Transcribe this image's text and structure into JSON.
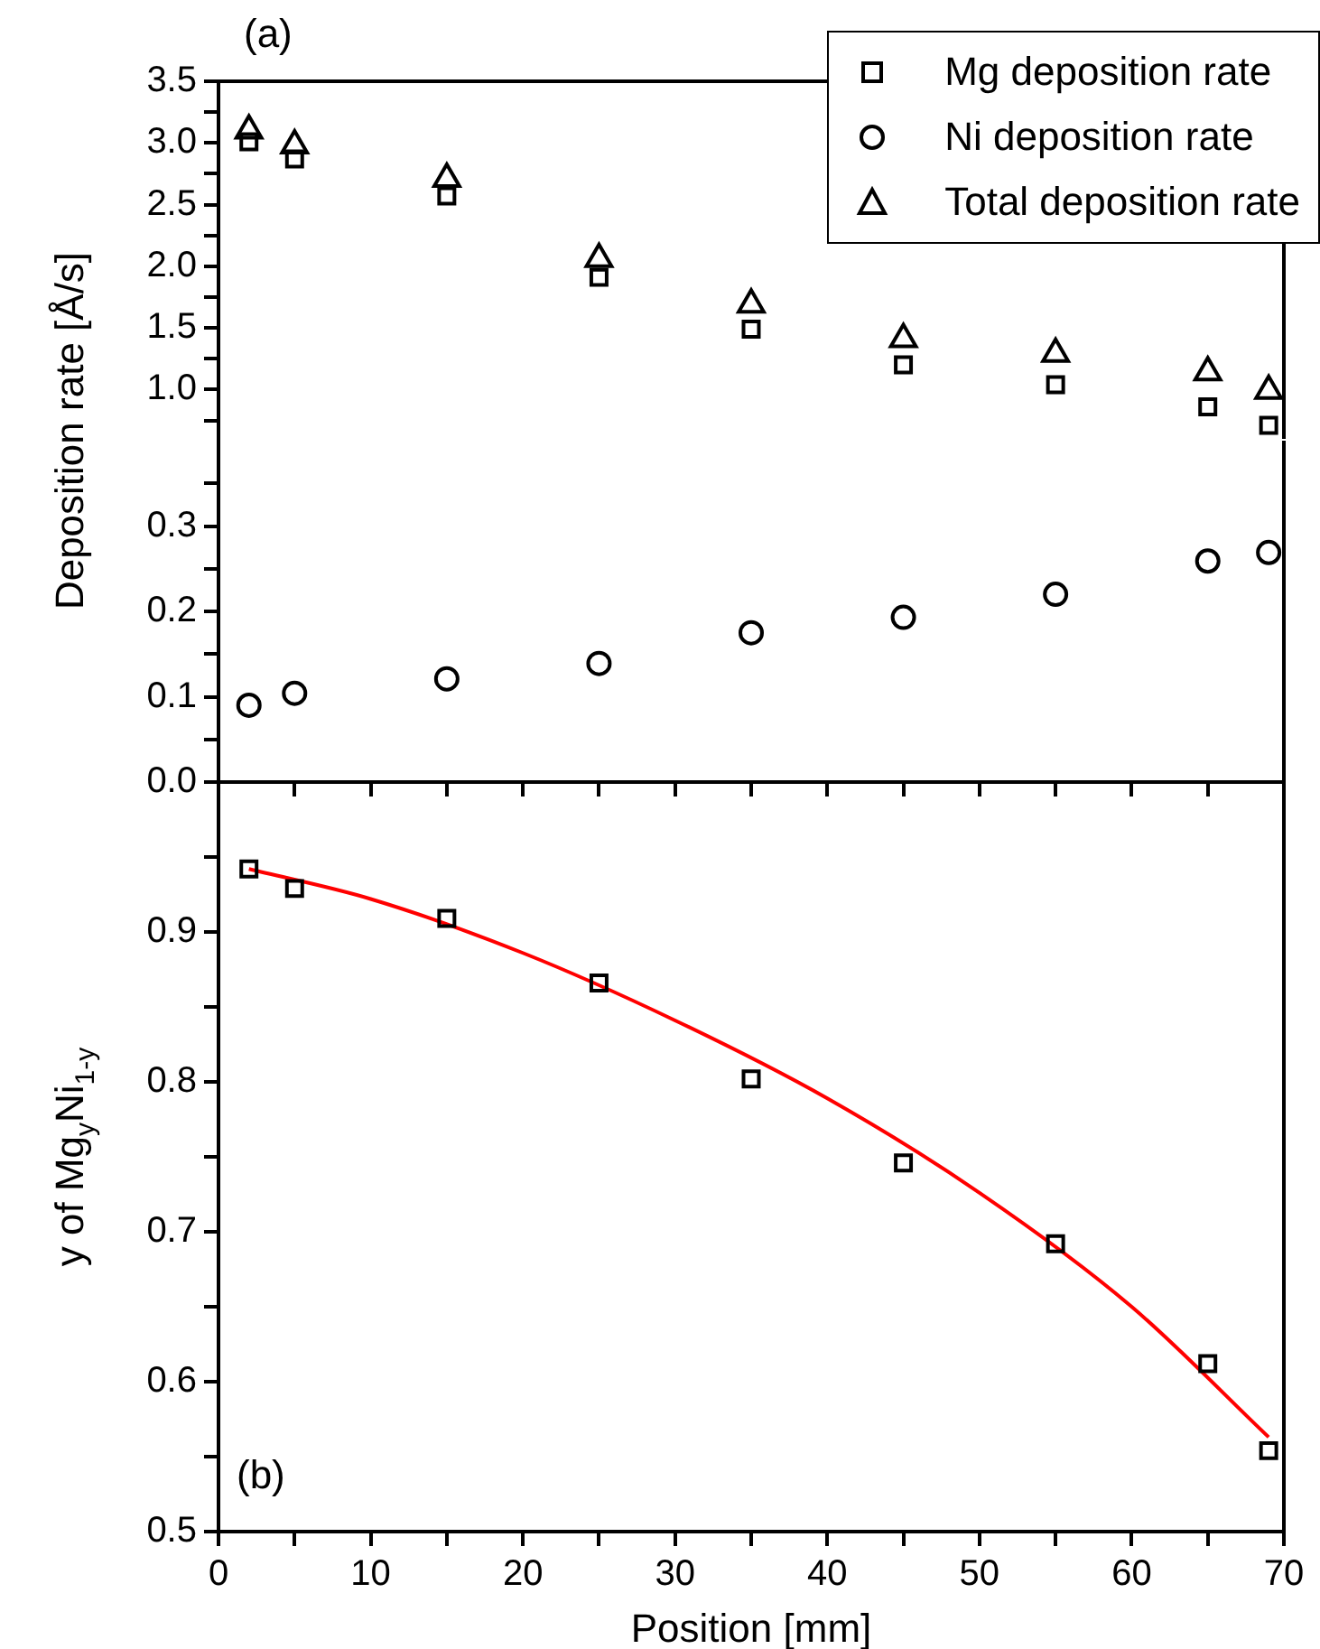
{
  "chart_data": [
    {
      "type": "scatter",
      "annotations": [
        "(a)"
      ],
      "ylabel": "Deposition rate [Å/s]",
      "legend": "top right",
      "grid": false,
      "tick_labels": "y",
      "x": [
        2,
        5,
        15,
        25,
        35,
        45,
        55,
        65,
        69
      ],
      "xlim": [
        0,
        70
      ],
      "ylim": [
        0.6,
        3.5
      ],
      "yticks": [
        {
          "value": 0.75,
          "label": null
        },
        {
          "value": 1,
          "label": "1.0"
        },
        {
          "value": 1.25,
          "label": null
        },
        {
          "value": 1.5,
          "label": "1.5"
        },
        {
          "value": 1.75,
          "label": null
        },
        {
          "value": 2,
          "label": "2.0"
        },
        {
          "value": 2.25,
          "label": null
        },
        {
          "value": 2.5,
          "label": "2.5"
        },
        {
          "value": 2.75,
          "label": null
        },
        {
          "value": 3,
          "label": "3.0"
        },
        {
          "value": 3.25,
          "label": null
        },
        {
          "value": 3.5,
          "label": "3.5"
        }
      ],
      "series": [
        {
          "name": "Mg deposition rate",
          "color": "#000000",
          "marker": "square",
          "values": [
            3.01,
            2.87,
            2.57,
            1.91,
            1.49,
            1.2,
            1.04,
            0.86,
            0.71
          ]
        },
        {
          "name": "Total deposition rate",
          "color": "#000000",
          "marker": "triangle",
          "values": [
            3.1,
            2.98,
            2.71,
            2.06,
            1.69,
            1.41,
            1.29,
            1.14,
            0.99
          ]
        }
      ]
    },
    {
      "type": "scatter",
      "legend": "top right",
      "grid": false,
      "tick_labels": "y",
      "x": [
        2,
        5,
        15,
        25,
        35,
        45,
        55,
        65,
        69
      ],
      "xlim": [
        0,
        70
      ],
      "xticks": [
        {
          "value": 0,
          "label": null
        },
        {
          "value": 5,
          "label": null
        },
        {
          "value": 10,
          "label": null
        },
        {
          "value": 15,
          "label": null
        },
        {
          "value": 20,
          "label": null
        },
        {
          "value": 25,
          "label": null
        },
        {
          "value": 30,
          "label": null
        },
        {
          "value": 35,
          "label": null
        },
        {
          "value": 40,
          "label": null
        },
        {
          "value": 45,
          "label": null
        },
        {
          "value": 50,
          "label": null
        },
        {
          "value": 55,
          "label": null
        },
        {
          "value": 60,
          "label": null
        },
        {
          "value": 65,
          "label": null
        },
        {
          "value": 70,
          "label": null
        }
      ],
      "ylim": [
        0,
        0.4
      ],
      "yticks": [
        {
          "value": 0,
          "label": "0.0"
        },
        {
          "value": 0.05,
          "label": null
        },
        {
          "value": 0.1,
          "label": "0.1"
        },
        {
          "value": 0.15,
          "label": null
        },
        {
          "value": 0.2,
          "label": "0.2"
        },
        {
          "value": 0.25,
          "label": null
        },
        {
          "value": 0.3,
          "label": "0.3"
        },
        {
          "value": 0.35,
          "label": null
        }
      ],
      "series": [
        {
          "name": "Ni deposition rate",
          "color": "#000000",
          "marker": "circle",
          "values": [
            0.09,
            0.104,
            0.121,
            0.139,
            0.175,
            0.193,
            0.22,
            0.259,
            0.269
          ]
        }
      ]
    },
    {
      "type": "scatter",
      "annotations": [
        "(b)"
      ],
      "xlabel": "Position [mm]",
      "ylabel": "y of Mg$_{y}$Ni$_{1-y}$",
      "grid": false,
      "xlim": [
        0,
        70
      ],
      "xticks": [
        0,
        {
          "value": 5,
          "label": null
        },
        10,
        {
          "value": 15,
          "label": null
        },
        20,
        {
          "value": 25,
          "label": null
        },
        30,
        {
          "value": 35,
          "label": null
        },
        40,
        {
          "value": 45,
          "label": null
        },
        50,
        {
          "value": 55,
          "label": null
        },
        60,
        {
          "value": 65,
          "label": null
        },
        70
      ],
      "ylim": [
        0.5,
        1.0
      ],
      "yticks": [
        {
          "value": 0.5,
          "label": "0.5"
        },
        {
          "value": 0.55,
          "label": null
        },
        {
          "value": 0.6,
          "label": "0.6"
        },
        {
          "value": 0.65,
          "label": null
        },
        {
          "value": 0.7,
          "label": "0.7"
        },
        {
          "value": 0.75,
          "label": null
        },
        {
          "value": 0.8,
          "label": "0.8"
        },
        {
          "value": 0.85,
          "label": null
        },
        {
          "value": 0.9,
          "label": "0.9"
        },
        {
          "value": 0.95,
          "label": null
        }
      ],
      "series": [
        {
          "color": "#000000",
          "marker": "square",
          "x": [
            2,
            5,
            15,
            25,
            35,
            45,
            55,
            65,
            69
          ],
          "values": [
            0.942,
            0.929,
            0.909,
            0.866,
            0.802,
            0.746,
            0.692,
            0.612,
            0.554
          ]
        },
        {
          "type": "line",
          "color": "#ff0000",
          "marker": "none",
          "line_style": "solid",
          "x": [
            2,
            10,
            20,
            30,
            40,
            50,
            60,
            69
          ],
          "values": [
            0.942,
            0.922,
            0.886,
            0.841,
            0.789,
            0.726,
            0.65,
            0.563
          ]
        }
      ]
    }
  ]
}
